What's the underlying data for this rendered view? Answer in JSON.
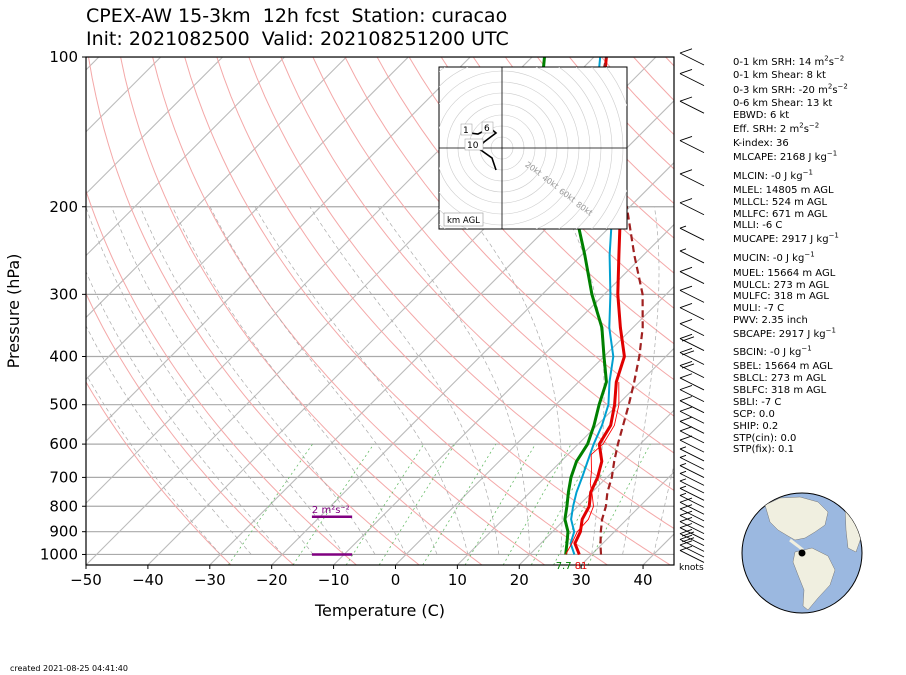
{
  "title": {
    "line1": "CPEX-AW 15-3km  12h fcst  Station: curacao",
    "line2": "Init: 2021082500  Valid: 202108251200 UTC"
  },
  "chart_data": {
    "type": "line",
    "xlabel": "Temperature (C)",
    "ylabel": "Pressure (hPa)",
    "xlim": [
      -50,
      45
    ],
    "ylim": [
      1050,
      100
    ],
    "y_scale": "log",
    "x_ticks": [
      -50,
      -40,
      -30,
      -20,
      -10,
      0,
      10,
      20,
      30,
      40
    ],
    "y_ticks": [
      100,
      200,
      300,
      400,
      500,
      600,
      700,
      800,
      900,
      1000
    ],
    "skew": "temperature lines skewed 45 degrees",
    "grid": true,
    "series": [
      {
        "color": "#e00000",
        "role": "temperature",
        "points": [
          [
            28,
            1000
          ],
          [
            25.5,
            950
          ],
          [
            24.5,
            900
          ],
          [
            22.8,
            850
          ],
          [
            21.8,
            800
          ],
          [
            19.8,
            750
          ],
          [
            18.5,
            700
          ],
          [
            16.6,
            650
          ],
          [
            13.4,
            600
          ],
          [
            12.2,
            550
          ],
          [
            9.5,
            500
          ],
          [
            6.1,
            450
          ],
          [
            3.3,
            400
          ],
          [
            -2.0,
            350
          ],
          [
            -7.8,
            300
          ],
          [
            -14.0,
            250
          ],
          [
            -21.5,
            200
          ],
          [
            -32.0,
            150
          ],
          [
            -38.0,
            130
          ],
          [
            -45.0,
            110
          ],
          [
            -48.0,
            100
          ]
        ]
      },
      {
        "color": "#00a0d0",
        "role": "virtual temperature",
        "points": [
          [
            27.2,
            1000
          ],
          [
            24.8,
            950
          ],
          [
            23.5,
            900
          ],
          [
            21.0,
            850
          ],
          [
            19.2,
            800
          ],
          [
            17.5,
            750
          ],
          [
            16.0,
            700
          ],
          [
            14.3,
            650
          ],
          [
            12.5,
            600
          ],
          [
            10.8,
            550
          ],
          [
            8.5,
            500
          ],
          [
            5.0,
            450
          ],
          [
            1.5,
            400
          ],
          [
            -3.8,
            350
          ],
          [
            -9.0,
            300
          ],
          [
            -15.5,
            250
          ],
          [
            -22.8,
            200
          ],
          [
            -33.0,
            150
          ],
          [
            -39.0,
            130
          ],
          [
            -46.0,
            110
          ],
          [
            -49.0,
            100
          ]
        ]
      },
      {
        "color": "#008000",
        "role": "dewpoint",
        "points": [
          [
            25.8,
            1000
          ],
          [
            24.2,
            950
          ],
          [
            22.5,
            900
          ],
          [
            20.0,
            850
          ],
          [
            18.2,
            800
          ],
          [
            16.2,
            750
          ],
          [
            14.2,
            700
          ],
          [
            12.5,
            650
          ],
          [
            11.5,
            600
          ],
          [
            9.5,
            550
          ],
          [
            7.0,
            500
          ],
          [
            4.5,
            450
          ],
          [
            0.0,
            400
          ],
          [
            -5.0,
            350
          ],
          [
            -12.0,
            300
          ],
          [
            -19.5,
            250
          ],
          [
            -29.0,
            200
          ],
          [
            -42.0,
            150
          ],
          [
            -48.0,
            130
          ],
          [
            -55.0,
            110
          ],
          [
            -58.0,
            100
          ]
        ]
      },
      {
        "color": "#a02020",
        "role": "parcel path",
        "dash": true,
        "points": [
          [
            31.5,
            1000
          ],
          [
            30.0,
            960
          ],
          [
            27.8,
            900
          ],
          [
            26.0,
            850
          ],
          [
            24.5,
            800
          ],
          [
            22.5,
            750
          ],
          [
            20.8,
            700
          ],
          [
            18.6,
            650
          ],
          [
            16.4,
            600
          ],
          [
            14.2,
            550
          ],
          [
            11.8,
            500
          ],
          [
            9.0,
            450
          ],
          [
            5.7,
            400
          ],
          [
            1.6,
            350
          ],
          [
            -3.8,
            300
          ],
          [
            -11.5,
            250
          ],
          [
            -20.5,
            200
          ],
          [
            -33.5,
            150
          ],
          [
            -43.0,
            120
          ],
          [
            -48.0,
            100
          ]
        ]
      },
      {
        "color": "#ff0000",
        "role": "thin temperature trace",
        "points": [
          [
            25.8,
            1000
          ],
          [
            25.0,
            950
          ],
          [
            24.0,
            900
          ],
          [
            23.8,
            850
          ],
          [
            22.5,
            800
          ],
          [
            20.5,
            760
          ],
          [
            18.3,
            720
          ],
          [
            16.5,
            680
          ],
          [
            13.8,
            630
          ],
          [
            14.0,
            600
          ],
          [
            12.8,
            550
          ],
          [
            10.2,
            500
          ],
          [
            6.5,
            450
          ]
        ]
      }
    ],
    "srh_markers": [
      {
        "label": "2 m²s⁻²",
        "pressure": 840,
        "x_from": -13.5,
        "x_to": -7.0,
        "color": "#800080"
      },
      {
        "label": "",
        "pressure": 1000,
        "x_from": -13.5,
        "x_to": -7.0,
        "color": "#800080"
      }
    ],
    "surface_labels": [
      {
        "text": "7.7",
        "color": "#008000"
      },
      {
        "text": "81",
        "color": "#e00000"
      }
    ],
    "barb_units": "knots",
    "winds": [
      {
        "p": 1000,
        "speed": 10
      },
      {
        "p": 975,
        "speed": 12
      },
      {
        "p": 950,
        "speed": 13
      },
      {
        "p": 925,
        "speed": 13
      },
      {
        "p": 900,
        "speed": 12
      },
      {
        "p": 875,
        "speed": 10
      },
      {
        "p": 850,
        "speed": 10
      },
      {
        "p": 825,
        "speed": 8
      },
      {
        "p": 800,
        "speed": 8
      },
      {
        "p": 775,
        "speed": 6
      },
      {
        "p": 750,
        "speed": 6
      },
      {
        "p": 725,
        "speed": 6
      },
      {
        "p": 700,
        "speed": 6
      },
      {
        "p": 675,
        "speed": 6
      },
      {
        "p": 650,
        "speed": 6
      },
      {
        "p": 625,
        "speed": 6
      },
      {
        "p": 600,
        "speed": 8
      },
      {
        "p": 575,
        "speed": 8
      },
      {
        "p": 550,
        "speed": 8
      },
      {
        "p": 525,
        "speed": 10
      },
      {
        "p": 500,
        "speed": 10
      },
      {
        "p": 475,
        "speed": 10
      },
      {
        "p": 450,
        "speed": 12
      },
      {
        "p": 425,
        "speed": 14
      },
      {
        "p": 400,
        "speed": 14
      },
      {
        "p": 375,
        "speed": 14
      },
      {
        "p": 350,
        "speed": 12
      },
      {
        "p": 325,
        "speed": 12
      },
      {
        "p": 300,
        "speed": 10
      },
      {
        "p": 275,
        "speed": 8
      },
      {
        "p": 250,
        "speed": 6
      },
      {
        "p": 225,
        "speed": 6
      },
      {
        "p": 200,
        "speed": 8
      },
      {
        "p": 175,
        "speed": 10
      },
      {
        "p": 150,
        "speed": 10
      },
      {
        "p": 125,
        "speed": 10
      },
      {
        "p": 110,
        "speed": 12
      },
      {
        "p": 100,
        "speed": 12
      }
    ]
  },
  "hodograph": {
    "range_labels": [
      "20kt",
      "40kt",
      "60kt",
      "80kt"
    ],
    "height_labels": [
      "1",
      "6",
      "10"
    ],
    "legend": "km AGL"
  },
  "indices": [
    {
      "l": "0-1 km SRH: 14 m",
      "s": "2",
      "r": "s",
      "s2": "−2",
      "r2": ""
    },
    {
      "l": "0-1 km Shear: 8 kt"
    },
    {
      "l": "0-3 km SRH: -20 m",
      "s": "2",
      "r": "s",
      "s2": "−2",
      "r2": ""
    },
    {
      "l": "0-6 km Shear: 13 kt"
    },
    {
      "l": "EBWD: 6 kt"
    },
    {
      "l": "Eff. SRH: 2 m",
      "s": "2",
      "r": "s",
      "s2": "−2",
      "r2": ""
    },
    {
      "l": "K-index: 36"
    },
    {
      "l": "MLCAPE: 2168 J kg",
      "s": "−1"
    },
    {
      "l": "MLCIN: -0 J kg",
      "s": "−1"
    },
    {
      "l": "MLEL: 14805 m AGL"
    },
    {
      "l": "MLLCL: 524 m AGL"
    },
    {
      "l": "MLLFC: 671 m AGL"
    },
    {
      "l": "MLLI: -6 C"
    },
    {
      "l": "MUCAPE: 2917 J kg",
      "s": "−1"
    },
    {
      "l": "MUCIN: -0 J kg",
      "s": "−1"
    },
    {
      "l": "MUEL: 15664 m AGL"
    },
    {
      "l": "MULCL: 273 m AGL"
    },
    {
      "l": "MULFC: 318 m AGL"
    },
    {
      "l": "MULI: -7 C"
    },
    {
      "l": "PWV: 2.35 inch"
    },
    {
      "l": "SBCAPE: 2917 J kg",
      "s": "−1"
    },
    {
      "l": "SBCIN: -0 J kg",
      "s": "−1"
    },
    {
      "l": "SBEL: 15664 m AGL"
    },
    {
      "l": "SBLCL: 273 m AGL"
    },
    {
      "l": "SBLFC: 318 m AGL"
    },
    {
      "l": "SBLI: -7 C"
    },
    {
      "l": "SCP: 0.0"
    },
    {
      "l": "SHIP: 0.2"
    },
    {
      "l": "STP(cin): 0.0"
    },
    {
      "l": "STP(fix): 0.1"
    }
  ],
  "created": "created 2021-08-25 04:41:40",
  "colors": {
    "temperature": "#e00000",
    "dewpoint": "#008000",
    "virtual": "#00a0d0",
    "parcel": "#a02020",
    "srh": "#800080",
    "ocean": "#9bb8e0",
    "land": "#f0efe0",
    "station": "#008000"
  }
}
